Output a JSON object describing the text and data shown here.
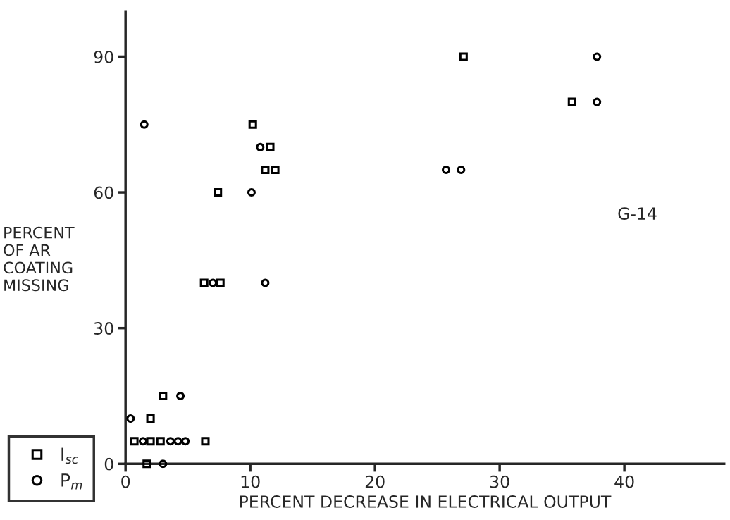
{
  "chart_data": {
    "type": "scatter",
    "xlabel": "PERCENT DECREASE IN ELECTRICAL OUTPUT",
    "ylabel": "PERCENT\nOF AR\nCOATING\nMISSING",
    "series": [
      {
        "name": "I$_{sc}$",
        "color": "#000000",
        "marker": "square",
        "x": [
          1.7,
          0.7,
          2.0,
          2.8,
          6.4,
          2.0,
          3.0,
          7.4,
          6.3,
          7.6,
          11.2,
          12.0,
          11.6,
          10.2,
          27.1,
          35.8
        ],
        "values": [
          0,
          5,
          5,
          5,
          5,
          10,
          15,
          60,
          40,
          40,
          65,
          65,
          70,
          75,
          90,
          80
        ]
      },
      {
        "name": "P$_{m}$",
        "color": "#000000",
        "marker": "circle",
        "x": [
          3.0,
          1.4,
          3.6,
          4.2,
          4.8,
          0.4,
          4.4,
          10.1,
          7.0,
          11.2,
          10.8,
          1.5,
          25.7,
          26.9,
          37.8,
          37.8
        ],
        "values": [
          0,
          5,
          5,
          5,
          5,
          10,
          15,
          60,
          40,
          40,
          70,
          75,
          65,
          65,
          90,
          80
        ]
      }
    ],
    "xlim": [
      0,
      48
    ],
    "xticks": [
      0,
      10,
      20,
      30,
      40
    ],
    "ylim": [
      0,
      100
    ],
    "yticks": [
      0,
      30,
      60,
      90
    ],
    "grid": false,
    "legend": "bottom left",
    "annotations": [
      "G-14"
    ]
  }
}
